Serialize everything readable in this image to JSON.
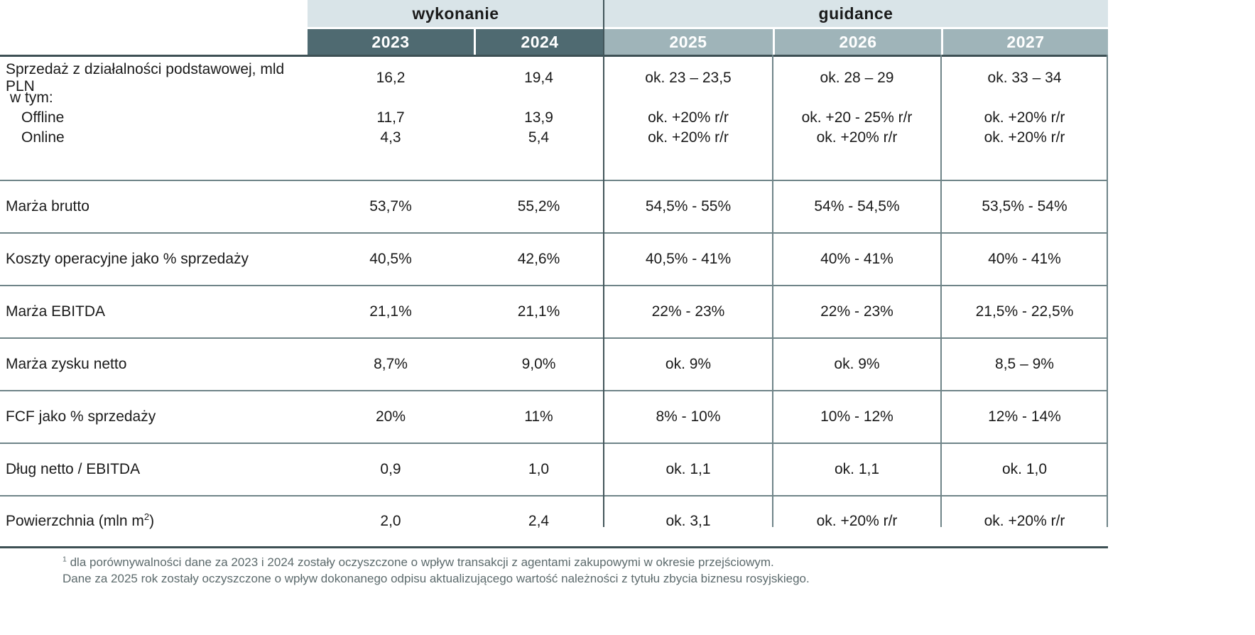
{
  "header": {
    "groups": [
      {
        "label": "wykonanie"
      },
      {
        "label": "guidance"
      }
    ],
    "years": [
      "2023",
      "2024",
      "2025",
      "2026",
      "2027"
    ]
  },
  "colors": {
    "band_bg": "#d9e4e8",
    "actual_year_bg": "#4f6a71",
    "guidance_year_bg": "#9fb4b9",
    "grid_line": "#6f8488",
    "frame_line": "#3d5054",
    "text": "#1a1a1a",
    "footnote_text": "#5c6a6c"
  },
  "sales_row": {
    "lines": [
      {
        "label": "Sprzedaż z działalności podstawowej, mld PLN",
        "values": [
          "16,2",
          "19,4",
          "ok. 23 – 23,5",
          "ok. 28 – 29",
          "ok. 33 – 34"
        ]
      },
      {
        "label": "w tym:",
        "values": [
          "",
          "",
          "",
          "",
          ""
        ]
      },
      {
        "label": "Offline",
        "values": [
          "11,7",
          "13,9",
          "ok. +20% r/r",
          "ok. +20 - 25% r/r",
          "ok. +20% r/r"
        ]
      },
      {
        "label": "Online",
        "values": [
          "4,3",
          "5,4",
          "ok. +20% r/r",
          "ok. +20% r/r",
          "ok. +20% r/r"
        ]
      }
    ]
  },
  "rows": [
    {
      "label": "Marża brutto",
      "values": [
        "53,7%",
        "55,2%",
        "54,5% - 55%",
        "54% - 54,5%",
        "53,5% - 54%"
      ]
    },
    {
      "label": "Koszty operacyjne jako % sprzedaży",
      "values": [
        "40,5%",
        "42,6%",
        "40,5% - 41%",
        "40% - 41%",
        "40% - 41%"
      ]
    },
    {
      "label": "Marża EBITDA",
      "values": [
        "21,1%",
        "21,1%",
        "22% - 23%",
        "22% - 23%",
        "21,5% - 22,5%"
      ]
    },
    {
      "label": "Marża zysku netto",
      "values": [
        "8,7%",
        "9,0%",
        "ok. 9%",
        "ok. 9%",
        "8,5 – 9%"
      ]
    },
    {
      "label": "FCF jako % sprzedaży",
      "values": [
        "20%",
        "11%",
        "8% - 10%",
        "10% - 12%",
        "12% - 14%"
      ]
    },
    {
      "label": "Dług netto / EBITDA",
      "values": [
        "0,9",
        "1,0",
        "ok. 1,1",
        "ok. 1,1",
        "ok. 1,0"
      ]
    },
    {
      "label_main": "Powierzchnia (mln m",
      "label_sup": "2",
      "label_end": ")",
      "values": [
        "2,0",
        "2,4",
        "ok. 3,1",
        "ok. +20% r/r",
        "ok. +20% r/r"
      ]
    }
  ],
  "footnote": {
    "sup": "1",
    "line1": " dla porównywalności dane za 2023 i 2024 zostały oczyszczone o wpływ transakcji z agentami zakupowymi w okresie przejściowym.",
    "line2": "Dane za 2025 rok zostały oczyszczone o wpływ dokonanego odpisu aktualizującego wartość należności z tytułu zbycia biznesu rosyjskiego."
  }
}
